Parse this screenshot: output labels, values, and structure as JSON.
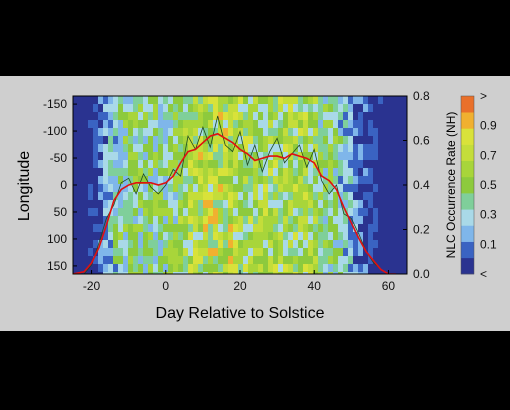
{
  "colors": {
    "background": "#000000",
    "panel": "#cfcfcf",
    "line_smooth": "#e01010",
    "line_raw": "#1f4a1f",
    "colormap": [
      "#2a3390",
      "#3a63c2",
      "#7fb6ea",
      "#a9d9e8",
      "#7fcf9a",
      "#8dca3d",
      "#a8d53a",
      "#c4dd3a",
      "#d9e23a",
      "#f0b030",
      "#e9702a"
    ]
  },
  "chart_data": {
    "type": "heatmap",
    "title": "",
    "xlabel": "Day Relative to Solstice",
    "ylabel": "Longitude",
    "y2label": "NLC Occurrence Rate (NH)",
    "xlim": [
      -25,
      65
    ],
    "ylim": [
      165,
      -165
    ],
    "y2lim": [
      0,
      0.8
    ],
    "grid": false,
    "xticks": [
      -20,
      0,
      20,
      40,
      60
    ],
    "yticks": [
      -150,
      -100,
      -50,
      0,
      50,
      100,
      150
    ],
    "y2ticks": [
      0.0,
      0.2,
      0.4,
      0.6,
      0.8
    ],
    "colorbar": {
      "levels": [
        0.0,
        0.1,
        0.2,
        0.3,
        0.4,
        0.5,
        0.6,
        0.7,
        0.8,
        0.9,
        1.0
      ],
      "labels": [
        "<",
        "0.1",
        "0.3",
        "0.5",
        "0.7",
        "0.9",
        ">"
      ]
    },
    "series": [
      {
        "style": "smoothed",
        "x": [
          -25,
          -22,
          -20,
          -18,
          -16,
          -14,
          -12,
          -10,
          -8,
          -6,
          -4,
          -2,
          0,
          2,
          4,
          6,
          8,
          10,
          12,
          14,
          16,
          18,
          20,
          22,
          24,
          26,
          28,
          30,
          32,
          34,
          36,
          38,
          40,
          42,
          44,
          46,
          48,
          50,
          52,
          54,
          56,
          58,
          60,
          62
        ],
        "y": [
          0.0,
          0.01,
          0.05,
          0.12,
          0.22,
          0.33,
          0.38,
          0.4,
          0.41,
          0.41,
          0.41,
          0.4,
          0.41,
          0.44,
          0.5,
          0.55,
          0.56,
          0.59,
          0.62,
          0.63,
          0.61,
          0.59,
          0.56,
          0.54,
          0.51,
          0.52,
          0.53,
          0.53,
          0.52,
          0.54,
          0.53,
          0.52,
          0.5,
          0.44,
          0.42,
          0.38,
          0.3,
          0.23,
          0.16,
          0.1,
          0.06,
          0.02,
          0.0,
          0.0
        ]
      },
      {
        "style": "daily",
        "x": [
          -25,
          -22,
          -20,
          -18,
          -16,
          -14,
          -12,
          -10,
          -8,
          -6,
          -4,
          -2,
          0,
          2,
          4,
          6,
          8,
          10,
          12,
          14,
          16,
          18,
          20,
          22,
          24,
          26,
          28,
          30,
          32,
          34,
          36,
          38,
          40,
          42,
          44,
          46,
          48,
          50,
          52,
          54,
          56,
          58,
          60,
          62
        ],
        "y": [
          0.0,
          0.0,
          0.04,
          0.14,
          0.25,
          0.31,
          0.41,
          0.43,
          0.36,
          0.45,
          0.39,
          0.36,
          0.4,
          0.47,
          0.44,
          0.62,
          0.56,
          0.66,
          0.57,
          0.71,
          0.58,
          0.55,
          0.64,
          0.49,
          0.58,
          0.46,
          0.55,
          0.61,
          0.5,
          0.54,
          0.58,
          0.48,
          0.56,
          0.42,
          0.36,
          0.4,
          0.27,
          0.25,
          0.18,
          0.1,
          0.05,
          0.02,
          0.0,
          0.0
        ]
      }
    ]
  }
}
